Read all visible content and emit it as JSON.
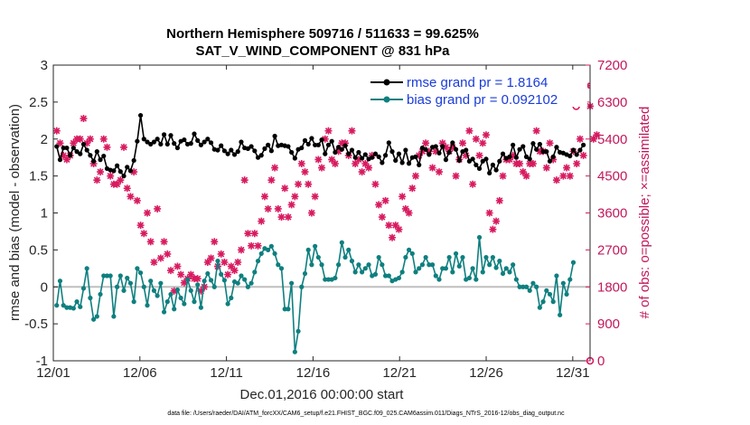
{
  "chart_data": {
    "type": "line",
    "title": "Northern Hemisphere 509716 / 511633 = 99.625%",
    "subtitle": "SAT_V_WIND_COMPONENT @ 831 hPa",
    "xlabel": "Dec.01,2016 00:00:00 start",
    "ylabel": "rmse and bias (model - observation)",
    "y2label": "# of obs: o=possible; ×=assimilated",
    "footer": "data file: /Users/raeder/DAI/ATM_forcXX/CAM6_setup/f.e21.FHIST_BGC.f09_025.CAM6assim.011/Diags_NTrS_2016-12/obs_diag_output.nc",
    "xlim": [
      0,
      31
    ],
    "ylim": [
      -1,
      3
    ],
    "y2lim": [
      0,
      7200
    ],
    "x_ticks": [
      0,
      5,
      10,
      15,
      20,
      25,
      30
    ],
    "x_tick_labels": [
      "12/01",
      "12/06",
      "12/11",
      "12/16",
      "12/21",
      "12/26",
      "12/31"
    ],
    "y_ticks": [
      -1,
      -0.5,
      0,
      0.5,
      1,
      1.5,
      2,
      2.5,
      3
    ],
    "y_tick_labels": [
      "-1",
      "-0.5",
      "0",
      "0.5",
      "1",
      "1.5",
      "2",
      "2.5",
      "3"
    ],
    "y2_ticks": [
      0,
      900,
      1800,
      2700,
      3600,
      4500,
      5400,
      6300,
      7200
    ],
    "y2_tick_labels": [
      "0",
      "900",
      "1800",
      "2700",
      "3600",
      "4500",
      "5400",
      "6300",
      "7200"
    ],
    "legend_position": "top-right",
    "colors": {
      "rmse": "#000000",
      "bias": "#0f7f7f",
      "obs": "#d81b60",
      "zero_line": "#bfbfbf"
    },
    "series": [
      {
        "name": "rmse",
        "legend": "rmse grand pr = 1.8164",
        "values": [
          1.9,
          1.72,
          1.88,
          1.88,
          1.78,
          1.88,
          1.83,
          1.8,
          1.93,
          1.85,
          1.78,
          1.7,
          1.83,
          1.72,
          1.77,
          1.6,
          1.58,
          1.57,
          1.64,
          1.56,
          1.5,
          1.62,
          1.57,
          1.71,
          1.97,
          2.32,
          2.0,
          1.96,
          1.93,
          1.96,
          2.0,
          1.93,
          2.06,
          1.93,
          2.05,
          1.94,
          1.88,
          1.97,
          1.99,
          1.93,
          1.94,
          2.07,
          1.98,
          1.92,
          1.96,
          2.0,
          1.95,
          1.86,
          1.85,
          1.91,
          1.84,
          1.8,
          1.85,
          1.79,
          1.83,
          1.96,
          1.88,
          1.87,
          1.9,
          1.84,
          1.75,
          1.78,
          1.87,
          1.92,
          1.84,
          2.04,
          1.91,
          1.92,
          1.91,
          1.9,
          1.82,
          1.74,
          1.86,
          1.88,
          1.98,
          1.93,
          2.01,
          1.92,
          1.92,
          1.99,
          1.8,
          1.92,
          1.97,
          1.82,
          1.89,
          1.86,
          1.91,
          1.8,
          1.85,
          1.75,
          1.82,
          1.74,
          1.79,
          1.73,
          1.75,
          1.8,
          1.76,
          1.68,
          1.78,
          1.95,
          1.83,
          1.71,
          1.8,
          1.68,
          1.85,
          1.67,
          1.75,
          1.76,
          1.65,
          1.88,
          1.86,
          1.79,
          1.89,
          1.9,
          1.81,
          1.9,
          1.72,
          1.82,
          1.95,
          1.86,
          1.71,
          1.83,
          1.85,
          1.7,
          1.73,
          1.65,
          1.6,
          1.7,
          1.73,
          1.54,
          1.65,
          1.58,
          1.7,
          1.8,
          1.74,
          1.76,
          1.92,
          1.75,
          1.86,
          1.9,
          1.76,
          1.73,
          1.94,
          1.86,
          1.93,
          1.83,
          1.83,
          1.7,
          1.76,
          1.89,
          1.82,
          1.81,
          1.79,
          1.77,
          1.85,
          1.79,
          1.85,
          1.92
        ]
      },
      {
        "name": "bias",
        "legend": "bias grand pr = 0.092102",
        "values": [
          -0.25,
          0.08,
          -0.25,
          -0.28,
          -0.28,
          -0.29,
          -0.2,
          -0.27,
          -0.02,
          0.25,
          -0.15,
          -0.44,
          -0.4,
          -0.1,
          0.15,
          0.15,
          0.15,
          -0.4,
          0.0,
          0.15,
          -0.05,
          0.12,
          0.05,
          -0.2,
          0.25,
          0.19,
          0.0,
          -0.25,
          0.08,
          -0.05,
          -0.12,
          0.05,
          -0.34,
          -0.2,
          -0.1,
          -0.3,
          -0.04,
          -0.15,
          -0.23,
          0.1,
          -0.05,
          -0.2,
          0.03,
          -0.28,
          0.08,
          0.18,
          0.09,
          0.0,
          0.35,
          0.17,
          0.09,
          -0.23,
          -0.15,
          0.07,
          0.05,
          0.15,
          0.1,
          0.0,
          0.05,
          0.2,
          0.35,
          0.45,
          0.52,
          0.5,
          0.55,
          0.45,
          0.3,
          0.25,
          -0.3,
          -0.3,
          0.05,
          -0.88,
          -0.6,
          0.0,
          0.18,
          0.5,
          0.3,
          0.55,
          0.4,
          0.3,
          0.1,
          0.1,
          0.1,
          0.12,
          0.3,
          0.6,
          0.4,
          0.5,
          0.35,
          0.2,
          0.3,
          0.2,
          0.25,
          0.3,
          0.15,
          0.17,
          0.4,
          0.3,
          0.15,
          0.15,
          0.08,
          0.1,
          0.12,
          0.2,
          0.4,
          0.5,
          0.45,
          0.2,
          0.25,
          0.3,
          0.4,
          0.3,
          0.3,
          0.15,
          0.1,
          0.25,
          0.25,
          0.4,
          0.2,
          0.45,
          0.28,
          0.4,
          0.1,
          0.12,
          0.25,
          0.1,
          0.67,
          0.2,
          0.4,
          0.3,
          0.4,
          0.26,
          0.35,
          0.18,
          0.25,
          0.2,
          0.3,
          0.1,
          0.0,
          0.0,
          0.0,
          -0.05,
          0.05,
          0.0,
          -0.28,
          -0.2,
          -0.05,
          -0.1,
          -0.2,
          0.15,
          -0.38,
          0.05,
          -0.1,
          0.1,
          0.33
        ]
      },
      {
        "name": "obs_assimilated",
        "values": [
          5600,
          5300,
          5000,
          4900,
          5000,
          5300,
          5400,
          5400,
          5900,
          5300,
          5400,
          4800,
          4400,
          4600,
          5400,
          5200,
          4500,
          4300,
          4300,
          4400,
          5200,
          4200,
          4000,
          4600,
          3900,
          3300,
          3100,
          3600,
          2900,
          2400,
          3700,
          2500,
          2900,
          2600,
          2200,
          1700,
          2300,
          2100,
          1900,
          2000,
          2100,
          2000,
          2000,
          1700,
          1800,
          2400,
          2500,
          2900,
          2300,
          2600,
          2400,
          2100,
          2300,
          2200,
          2400,
          2700,
          4400,
          3100,
          2800,
          3100,
          2800,
          3400,
          4000,
          3700,
          4400,
          4700,
          3700,
          3500,
          4200,
          3500,
          3800,
          4000,
          4300,
          4800,
          4600,
          4300,
          3600,
          4000,
          4900,
          4700,
          5400,
          5600,
          4900,
          4800,
          5100,
          5300,
          5300,
          5000,
          5600,
          4800,
          4900,
          4600,
          4800,
          4700,
          5000,
          4300,
          3800,
          3500,
          3900,
          3300,
          3000,
          3300,
          3200,
          4000,
          3700,
          3600,
          4200,
          4500,
          5000,
          5100,
          5300,
          5100,
          4700,
          5100,
          4600,
          5300,
          5200,
          5100,
          5200,
          4500,
          4900,
          5300,
          5000,
          5600,
          4300,
          5400,
          5000,
          5300,
          5500,
          3600,
          3200,
          3400,
          3900,
          4500,
          4900,
          4900,
          5000,
          4800,
          4800,
          4600,
          4500,
          4800,
          4800,
          5600,
          5100,
          5100,
          4700,
          5300,
          4900,
          4400,
          6600,
          4500,
          4700,
          4500,
          5100,
          4800,
          5400,
          5000,
          6700,
          6200,
          5400,
          5500
        ]
      },
      {
        "name": "obs_possible",
        "values": [
          [
            30.5,
            6900
          ],
          [
            30.2,
            6200
          ],
          [
            31.0,
            0
          ]
        ]
      }
    ]
  }
}
